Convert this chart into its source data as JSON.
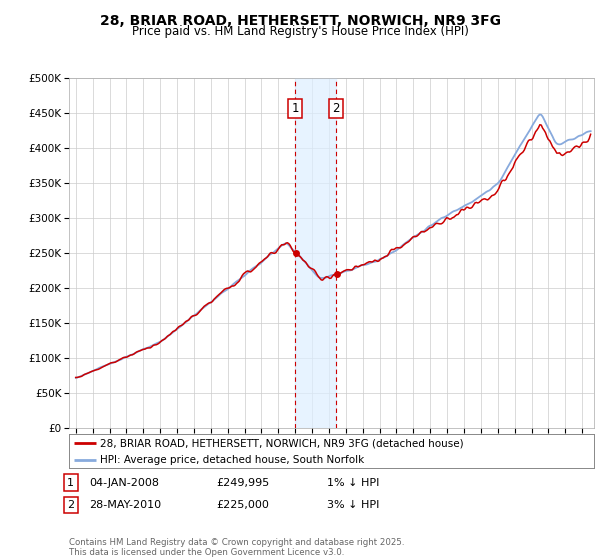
{
  "title": "28, BRIAR ROAD, HETHERSETT, NORWICH, NR9 3FG",
  "subtitle": "Price paid vs. HM Land Registry's House Price Index (HPI)",
  "ylim": [
    0,
    500000
  ],
  "yticks": [
    0,
    50000,
    100000,
    150000,
    200000,
    250000,
    300000,
    350000,
    400000,
    450000,
    500000
  ],
  "ytick_labels": [
    "£0",
    "£50K",
    "£100K",
    "£150K",
    "£200K",
    "£250K",
    "£300K",
    "£350K",
    "£400K",
    "£450K",
    "£500K"
  ],
  "background_color": "#ffffff",
  "plot_bg_color": "#ffffff",
  "grid_color": "#cccccc",
  "hpi_color": "#88aadd",
  "price_color": "#cc0000",
  "shade_color": "#ddeeff",
  "sale1_date": 2008.01,
  "sale1_price": 249995,
  "sale2_date": 2010.42,
  "sale2_price": 225000,
  "legend_line1": "28, BRIAR ROAD, HETHERSETT, NORWICH, NR9 3FG (detached house)",
  "legend_line2": "HPI: Average price, detached house, South Norfolk",
  "footer_line1": "Contains HM Land Registry data © Crown copyright and database right 2025.",
  "footer_line2": "This data is licensed under the Open Government Licence v3.0.",
  "table_row1_num": "1",
  "table_row1_date": "04-JAN-2008",
  "table_row1_price": "£249,995",
  "table_row1_hpi": "1% ↓ HPI",
  "table_row2_num": "2",
  "table_row2_date": "28-MAY-2010",
  "table_row2_price": "£225,000",
  "table_row2_hpi": "3% ↓ HPI"
}
